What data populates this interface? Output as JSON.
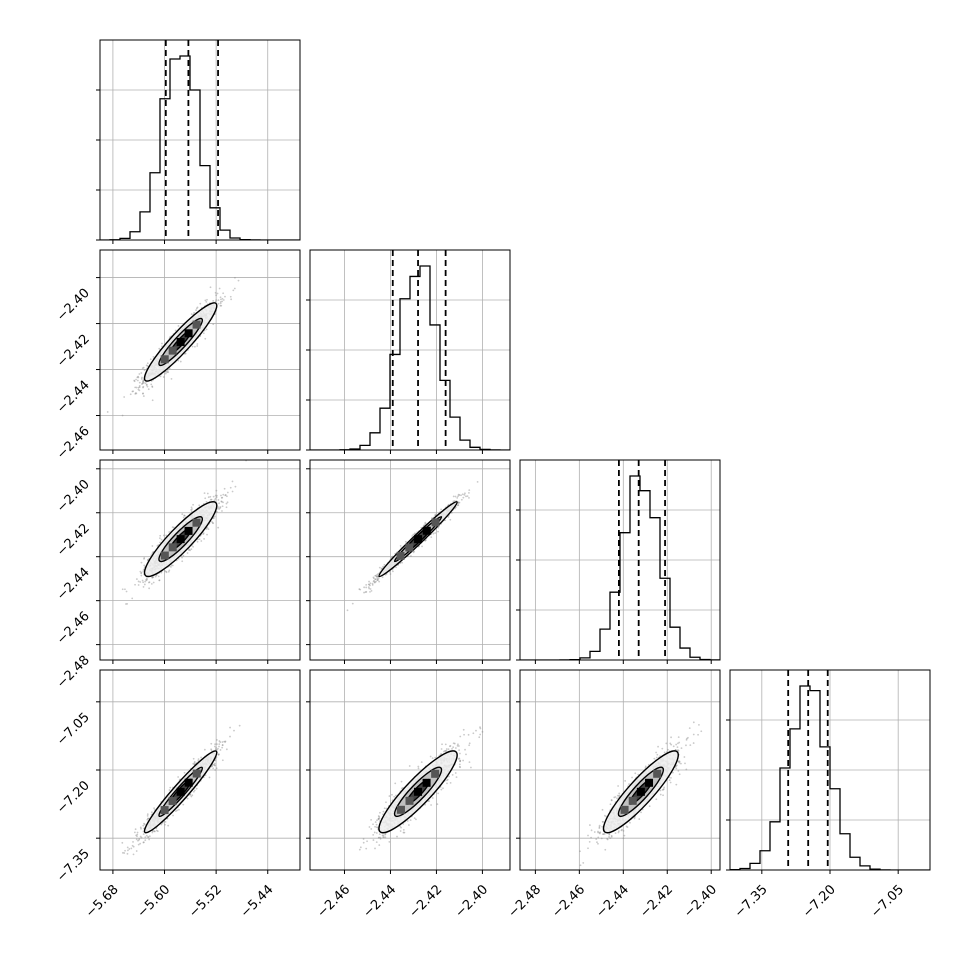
{
  "chart_data": {
    "type": "corner",
    "title": "",
    "parameters": [
      {
        "ticks": [
          -5.68,
          -5.6,
          -5.52,
          -5.44
        ],
        "tick_labels": [
          "−5.68",
          "−5.60",
          "−5.52",
          "−5.44"
        ],
        "range": [
          -5.7,
          -5.39
        ],
        "mean": -5.575,
        "sd": 0.028,
        "quantiles": [
          -5.598,
          -5.563,
          -5.517
        ]
      },
      {
        "ticks": [
          -2.46,
          -2.44,
          -2.42,
          -2.4
        ],
        "tick_labels": [
          "−2.46",
          "−2.44",
          "−2.42",
          "−2.40"
        ],
        "range": [
          -2.475,
          -2.388
        ],
        "mean": -2.428,
        "sd": 0.0085,
        "quantiles": [
          -2.439,
          -2.428,
          -2.416
        ]
      },
      {
        "ticks": [
          -2.48,
          -2.46,
          -2.44,
          -2.42,
          -2.4
        ],
        "tick_labels": [
          "−2.48",
          "−2.46",
          "−2.44",
          "−2.42",
          "−2.40"
        ],
        "range": [
          -2.487,
          -2.396
        ],
        "mean": -2.432,
        "sd": 0.0085,
        "quantiles": [
          -2.442,
          -2.433,
          -2.421
        ]
      },
      {
        "ticks": [
          -7.35,
          -7.2,
          -7.05
        ],
        "tick_labels": [
          "−7.35",
          "−7.20",
          "−7.05"
        ],
        "range": [
          -7.42,
          -6.98
        ],
        "mean": -7.248,
        "sd": 0.045,
        "quantiles": [
          -7.292,
          -7.248,
          -7.205
        ]
      }
    ],
    "histogram_bins": 20,
    "quantile_levels": [
      0.16,
      0.5,
      0.84
    ],
    "correlations": [
      {
        "row": 1,
        "col": 0,
        "rho": 0.93
      },
      {
        "row": 2,
        "col": 0,
        "rho": 0.9
      },
      {
        "row": 2,
        "col": 1,
        "rho": 0.985
      },
      {
        "row": 3,
        "col": 0,
        "rho": 0.96
      },
      {
        "row": 3,
        "col": 1,
        "rho": 0.9
      },
      {
        "row": 3,
        "col": 2,
        "rho": 0.9
      }
    ],
    "contour_levels_sigma": [
      0.6,
      1.2,
      2.0
    ],
    "grid": true,
    "colors": {
      "line": "#000000",
      "scatter": "#8a8a8a",
      "grid": "#b0b0b0"
    }
  }
}
